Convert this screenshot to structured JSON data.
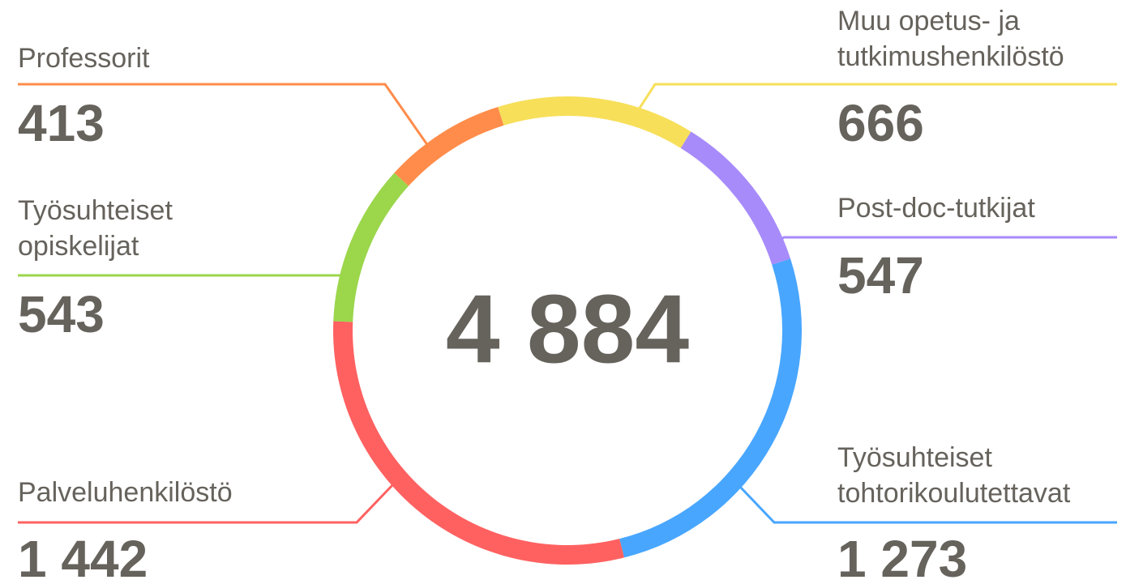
{
  "chart_data": {
    "type": "pie",
    "donut": true,
    "categories": [
      "Professorit",
      "Muu opetus- ja tutkimushenkilöstö",
      "Post-doc-tutkijat",
      "Työsuhteiset tohtorikoulutettavat",
      "Palveluhenkilöstö",
      "Työsuhteiset opiskelijat"
    ],
    "values": [
      413,
      666,
      547,
      1273,
      1442,
      543
    ],
    "value_labels": [
      "413",
      "666",
      "547",
      "1 273",
      "1 442",
      "543"
    ],
    "colors": [
      "#ff8c4a",
      "#f7df5a",
      "#a78bfa",
      "#48a6ff",
      "#ff6161",
      "#9bd64b"
    ],
    "total": 4884,
    "total_label": "4 884"
  }
}
